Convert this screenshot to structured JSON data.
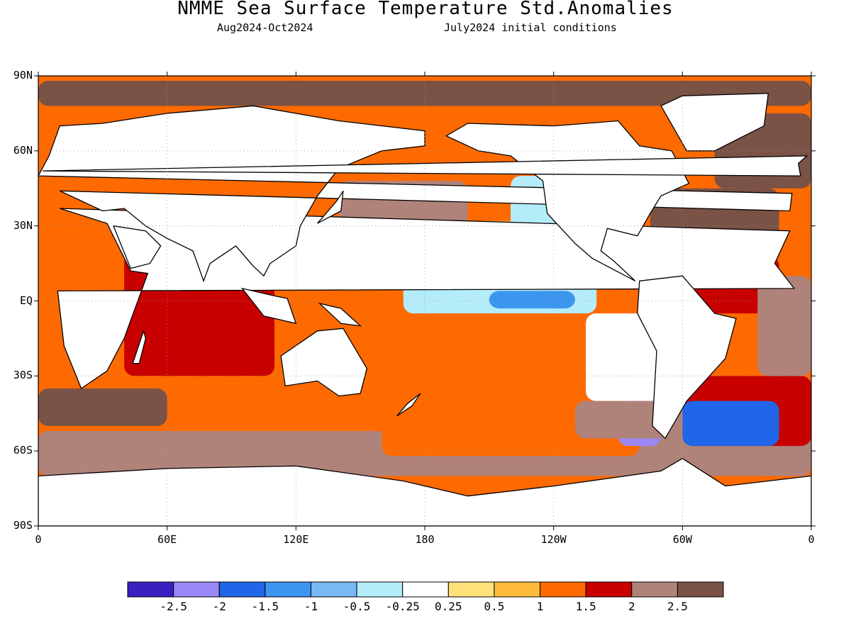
{
  "title": "NMME Sea Surface Temperature Std.Anomalies",
  "subtitle_period": "Aug2024-Oct2024",
  "subtitle_init": "July2024 initial conditions",
  "map": {
    "projection": "cylindrical equidistant",
    "lon_range": [
      0,
      360
    ],
    "lat_range": [
      -90,
      90
    ],
    "gridlines": "dotted",
    "lat_ticks": [
      {
        "lat": 90,
        "label": "90N"
      },
      {
        "lat": 60,
        "label": "60N"
      },
      {
        "lat": 30,
        "label": "30N"
      },
      {
        "lat": 0,
        "label": "EQ"
      },
      {
        "lat": -30,
        "label": "30S"
      },
      {
        "lat": -60,
        "label": "60S"
      },
      {
        "lat": -90,
        "label": "90S"
      }
    ],
    "lon_ticks": [
      {
        "lon": 0,
        "label": "0"
      },
      {
        "lon": 60,
        "label": "60E"
      },
      {
        "lon": 120,
        "label": "120E"
      },
      {
        "lon": 180,
        "label": "180"
      },
      {
        "lon": 240,
        "label": "120W"
      },
      {
        "lon": 300,
        "label": "60W"
      },
      {
        "lon": 360,
        "label": "0"
      }
    ]
  },
  "colorbar": {
    "colors": [
      "#3b1fc0",
      "#9b87f5",
      "#2166e8",
      "#3c96f0",
      "#78b8f5",
      "#b4ecfa",
      "#ffffff",
      "#ffe17a",
      "#ffbc3a",
      "#ff6a00",
      "#c80000",
      "#b0837a",
      "#7a5246"
    ],
    "labels": [
      "-2.5",
      "-2",
      "-1.5",
      "-1",
      "-0.5",
      "-0.25",
      "0.25",
      "0.5",
      "1",
      "1.5",
      "2",
      "2.5"
    ]
  },
  "anomaly_regions": [
    {
      "lon": [
        0,
        360
      ],
      "lat": [
        78,
        88
      ],
      "level": 12
    },
    {
      "lon": [
        0,
        360
      ],
      "lat": [
        -70,
        -52
      ],
      "level": 11
    },
    {
      "lon": [
        5,
        150
      ],
      "lat": [
        -52,
        -30
      ],
      "level": 9
    },
    {
      "lon": [
        160,
        280
      ],
      "lat": [
        -62,
        -35
      ],
      "level": 9
    },
    {
      "lon": [
        300,
        360
      ],
      "lat": [
        -58,
        -30
      ],
      "level": 10
    },
    {
      "lon": [
        120,
        260
      ],
      "lat": [
        -30,
        -5
      ],
      "level": 9
    },
    {
      "lon": [
        40,
        110
      ],
      "lat": [
        -30,
        20
      ],
      "level": 10
    },
    {
      "lon": [
        120,
        175
      ],
      "lat": [
        5,
        30
      ],
      "level": 10
    },
    {
      "lon": [
        140,
        200
      ],
      "lat": [
        30,
        48
      ],
      "level": 11
    },
    {
      "lon": [
        150,
        235
      ],
      "lat": [
        15,
        32
      ],
      "level": 8
    },
    {
      "lon": [
        170,
        260
      ],
      "lat": [
        -5,
        8
      ],
      "level": 5
    },
    {
      "lon": [
        210,
        250
      ],
      "lat": [
        -3,
        4
      ],
      "level": 3
    },
    {
      "lon": [
        255,
        290
      ],
      "lat": [
        -40,
        -5
      ],
      "level": 6
    },
    {
      "lon": [
        270,
        290
      ],
      "lat": [
        -58,
        -40
      ],
      "level": 1
    },
    {
      "lon": [
        285,
        345
      ],
      "lat": [
        20,
        45
      ],
      "level": 12
    },
    {
      "lon": [
        300,
        345
      ],
      "lat": [
        -5,
        18
      ],
      "level": 10
    },
    {
      "lon": [
        335,
        360
      ],
      "lat": [
        -30,
        10
      ],
      "level": 11
    },
    {
      "lon": [
        300,
        345
      ],
      "lat": [
        -58,
        -40
      ],
      "level": 2
    },
    {
      "lon": [
        0,
        60
      ],
      "lat": [
        -50,
        -35
      ],
      "level": 12
    },
    {
      "lon": [
        250,
        300
      ],
      "lat": [
        -55,
        -40
      ],
      "level": 11
    },
    {
      "lon": [
        220,
        255
      ],
      "lat": [
        20,
        50
      ],
      "level": 5
    },
    {
      "lon": [
        315,
        360
      ],
      "lat": [
        45,
        75
      ],
      "level": 12
    }
  ]
}
